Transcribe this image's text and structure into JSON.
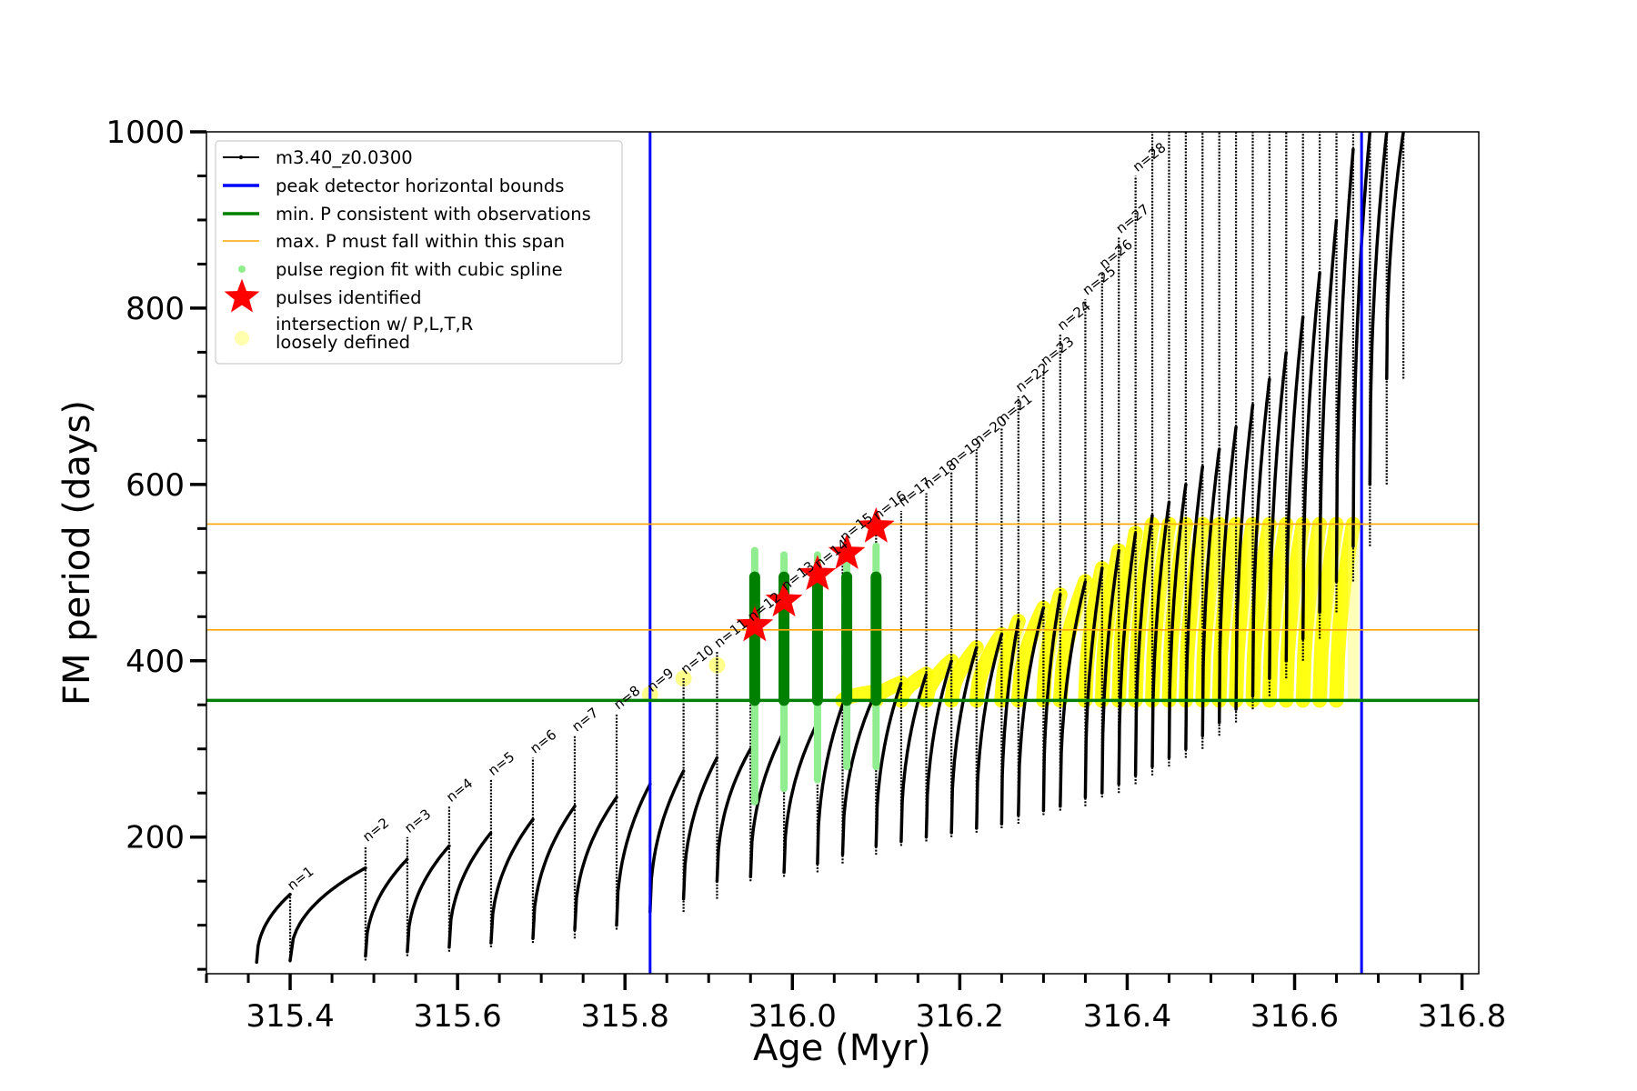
{
  "chart_data": {
    "type": "line",
    "xlabel": "Age (Myr)",
    "ylabel": "FM period (days)",
    "xlim": [
      315.3,
      316.82
    ],
    "ylim": [
      45,
      1000
    ],
    "xticks": [
      "315.4",
      "315.6",
      "315.8",
      "316.0",
      "316.2",
      "316.4",
      "316.6",
      "316.8"
    ],
    "xtick_values": [
      315.4,
      315.6,
      315.8,
      316.0,
      316.2,
      316.4,
      316.6,
      316.8
    ],
    "yticks": [
      "200",
      "400",
      "600",
      "800",
      "1000"
    ],
    "ytick_values": [
      200,
      400,
      600,
      800,
      1000
    ],
    "grid": false,
    "legend_position": "top-left",
    "legend": [
      {
        "label": "m3.40_z0.0300",
        "kind": "line-dot",
        "color": "#000000"
      },
      {
        "label": "peak detector horizontal bounds",
        "kind": "line",
        "color": "#0000ff"
      },
      {
        "label": "min. P consistent with observations",
        "kind": "line",
        "color": "#008000"
      },
      {
        "label": "max. P must fall within this span",
        "kind": "thin-line",
        "color": "#ffa500"
      },
      {
        "label": "pulse region fit with cubic spline",
        "kind": "dot",
        "color": "#90ee90"
      },
      {
        "label": "pulses identified",
        "kind": "star",
        "color": "#ff0000"
      },
      {
        "label": "intersection w/ P,L,T,R",
        "label2": "loosely defined",
        "kind": "circle",
        "color": "#ffff99"
      }
    ],
    "series": [
      {
        "name": "m3.40_z0.0300",
        "color": "#000000",
        "pulses": [
          {
            "n": "n=1",
            "x": 315.4,
            "x0": 315.36,
            "peak": 135,
            "min": 58,
            "spike": 135
          },
          {
            "n": "n=2",
            "x": 315.49,
            "x0": 315.4,
            "peak": 165,
            "min": 60,
            "spike": 190
          },
          {
            "n": "n=3",
            "x": 315.54,
            "x0": 315.49,
            "peak": 175,
            "min": 65,
            "spike": 200
          },
          {
            "n": "n=4",
            "x": 315.59,
            "x0": 315.54,
            "peak": 190,
            "min": 70,
            "spike": 235
          },
          {
            "n": "n=5",
            "x": 315.64,
            "x0": 315.59,
            "peak": 205,
            "min": 75,
            "spike": 265
          },
          {
            "n": "n=6",
            "x": 315.69,
            "x0": 315.64,
            "peak": 220,
            "min": 80,
            "spike": 290
          },
          {
            "n": "n=7",
            "x": 315.74,
            "x0": 315.69,
            "peak": 235,
            "min": 85,
            "spike": 315
          },
          {
            "n": "n=8",
            "x": 315.79,
            "x0": 315.74,
            "peak": 245,
            "min": 95,
            "spike": 340
          },
          {
            "n": "n=9",
            "x": 315.83,
            "x0": 315.79,
            "peak": 260,
            "min": 100,
            "spike": 360
          },
          {
            "n": "n=10",
            "x": 315.87,
            "x0": 315.83,
            "peak": 275,
            "min": 115,
            "spike": 380
          },
          {
            "n": "n=11",
            "x": 315.91,
            "x0": 315.87,
            "peak": 290,
            "min": 130,
            "spike": 410
          },
          {
            "n": "n=12",
            "x": 315.95,
            "x0": 315.91,
            "peak": 300,
            "min": 150,
            "spike": 440
          },
          {
            "n": "n=13",
            "x": 315.99,
            "x0": 315.95,
            "peak": 320,
            "min": 155,
            "spike": 475
          },
          {
            "n": "n=14",
            "x": 316.03,
            "x0": 315.99,
            "peak": 330,
            "min": 160,
            "spike": 500
          },
          {
            "n": "n=15",
            "x": 316.06,
            "x0": 316.03,
            "peak": 350,
            "min": 170,
            "spike": 530
          },
          {
            "n": "n=16",
            "x": 316.1,
            "x0": 316.06,
            "peak": 365,
            "min": 180,
            "spike": 555
          },
          {
            "n": "n=17",
            "x": 316.13,
            "x0": 316.1,
            "peak": 375,
            "min": 190,
            "spike": 570
          },
          {
            "n": "n=18",
            "x": 316.16,
            "x0": 316.13,
            "peak": 385,
            "min": 195,
            "spike": 590
          },
          {
            "n": "n=19",
            "x": 316.19,
            "x0": 316.16,
            "peak": 400,
            "min": 200,
            "spike": 615
          },
          {
            "n": "n=20",
            "x": 316.22,
            "x0": 316.19,
            "peak": 415,
            "min": 205,
            "spike": 640
          },
          {
            "n": "n=21",
            "x": 316.25,
            "x0": 316.22,
            "peak": 430,
            "min": 210,
            "spike": 665
          },
          {
            "n": "n=22",
            "x": 316.27,
            "x0": 316.25,
            "peak": 445,
            "min": 215,
            "spike": 700
          },
          {
            "n": "n=23",
            "x": 316.3,
            "x0": 316.27,
            "peak": 460,
            "min": 225,
            "spike": 730
          },
          {
            "n": "n=24",
            "x": 316.32,
            "x0": 316.3,
            "peak": 475,
            "min": 230,
            "spike": 770
          },
          {
            "n": "n=25",
            "x": 316.35,
            "x0": 316.32,
            "peak": 490,
            "min": 235,
            "spike": 810
          },
          {
            "n": "n=26",
            "x": 316.37,
            "x0": 316.35,
            "peak": 505,
            "min": 245,
            "spike": 840
          },
          {
            "n": "n=27",
            "x": 316.39,
            "x0": 316.37,
            "peak": 525,
            "min": 250,
            "spike": 880
          },
          {
            "n": "n=28",
            "x": 316.41,
            "x0": 316.39,
            "peak": 545,
            "min": 260,
            "spike": 950
          },
          {
            "n": "",
            "x": 316.43,
            "x0": 316.41,
            "peak": 565,
            "min": 270,
            "spike": 1000
          },
          {
            "n": "",
            "x": 316.45,
            "x0": 316.43,
            "peak": 580,
            "min": 280,
            "spike": 1000
          },
          {
            "n": "",
            "x": 316.47,
            "x0": 316.45,
            "peak": 600,
            "min": 290,
            "spike": 1000
          },
          {
            "n": "",
            "x": 316.49,
            "x0": 316.47,
            "peak": 620,
            "min": 300,
            "spike": 1000
          },
          {
            "n": "",
            "x": 316.51,
            "x0": 316.49,
            "peak": 640,
            "min": 315,
            "spike": 1000
          },
          {
            "n": "",
            "x": 316.53,
            "x0": 316.51,
            "peak": 665,
            "min": 330,
            "spike": 1000
          },
          {
            "n": "",
            "x": 316.55,
            "x0": 316.53,
            "peak": 690,
            "min": 345,
            "spike": 1000
          },
          {
            "n": "",
            "x": 316.57,
            "x0": 316.55,
            "peak": 720,
            "min": 360,
            "spike": 1000
          },
          {
            "n": "",
            "x": 316.59,
            "x0": 316.57,
            "peak": 750,
            "min": 380,
            "spike": 1000
          },
          {
            "n": "",
            "x": 316.61,
            "x0": 316.59,
            "peak": 790,
            "min": 400,
            "spike": 1000
          },
          {
            "n": "",
            "x": 316.63,
            "x0": 316.61,
            "peak": 840,
            "min": 425,
            "spike": 1000
          },
          {
            "n": "",
            "x": 316.65,
            "x0": 316.63,
            "peak": 900,
            "min": 455,
            "spike": 1000
          },
          {
            "n": "",
            "x": 316.67,
            "x0": 316.65,
            "peak": 980,
            "min": 490,
            "spike": 1000
          },
          {
            "n": "",
            "x": 316.69,
            "x0": 316.67,
            "peak": 1000,
            "min": 530,
            "spike": 1000
          },
          {
            "n": "",
            "x": 316.71,
            "x0": 316.69,
            "peak": 1000,
            "min": 600,
            "spike": 1000
          },
          {
            "n": "",
            "x": 316.73,
            "x0": 316.71,
            "peak": 1000,
            "min": 720,
            "spike": 1000
          }
        ]
      }
    ],
    "reference_lines": {
      "blue_vertical_x": [
        315.83,
        316.68
      ],
      "green_horizontal_y": 355,
      "orange_horizontal_y": [
        435,
        555
      ]
    },
    "spline_regions": [
      {
        "x": 315.955,
        "low": 240,
        "high": 525
      },
      {
        "x": 315.99,
        "low": 255,
        "high": 520
      },
      {
        "x": 316.03,
        "low": 265,
        "high": 520
      },
      {
        "x": 316.065,
        "low": 280,
        "high": 520
      },
      {
        "x": 316.1,
        "low": 280,
        "high": 530
      }
    ],
    "pulses_identified": [
      {
        "x": 315.955,
        "y": 440
      },
      {
        "x": 315.99,
        "y": 468
      },
      {
        "x": 316.03,
        "y": 498
      },
      {
        "x": 316.065,
        "y": 522
      },
      {
        "x": 316.1,
        "y": 552
      }
    ],
    "intersections": [
      {
        "x": 315.83,
        "y": 362
      },
      {
        "x": 315.87,
        "y": 380
      },
      {
        "x": 315.91,
        "y": 395
      }
    ]
  }
}
